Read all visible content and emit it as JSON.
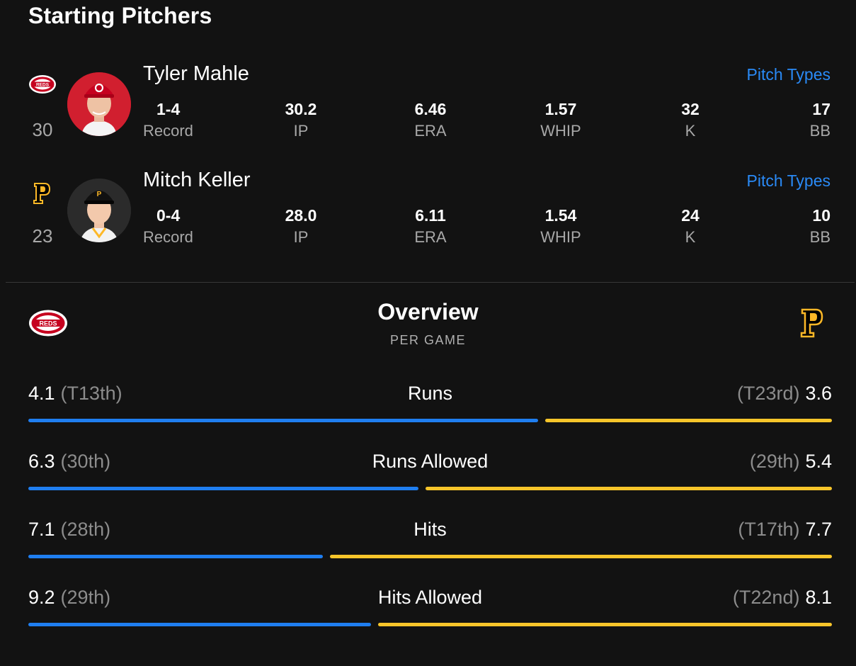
{
  "section_title": "Starting Pitchers",
  "pitchers": [
    {
      "team": "reds",
      "jersey": "30",
      "name": "Tyler Mahle",
      "link": "Pitch Types",
      "stats": [
        {
          "value": "1-4",
          "label": "Record"
        },
        {
          "value": "30.2",
          "label": "IP"
        },
        {
          "value": "6.46",
          "label": "ERA"
        },
        {
          "value": "1.57",
          "label": "WHIP"
        },
        {
          "value": "32",
          "label": "K"
        },
        {
          "value": "17",
          "label": "BB"
        }
      ]
    },
    {
      "team": "pirates",
      "jersey": "23",
      "name": "Mitch Keller",
      "link": "Pitch Types",
      "stats": [
        {
          "value": "0-4",
          "label": "Record"
        },
        {
          "value": "28.0",
          "label": "IP"
        },
        {
          "value": "6.11",
          "label": "ERA"
        },
        {
          "value": "1.54",
          "label": "WHIP"
        },
        {
          "value": "24",
          "label": "K"
        },
        {
          "value": "10",
          "label": "BB"
        }
      ]
    }
  ],
  "overview": {
    "title": "Overview",
    "subtitle": "PER GAME",
    "left_logo_text": "REDS",
    "right_logo_text": "P",
    "rows": [
      {
        "category": "Runs",
        "left_value": "4.1",
        "left_rank": "(T13th)",
        "right_value": "3.6",
        "right_rank": "(T23rd)",
        "left_share": 0.64,
        "right_share": 0.36
      },
      {
        "category": "Runs Allowed",
        "left_value": "6.3",
        "left_rank": "(30th)",
        "right_value": "5.4",
        "right_rank": "(29th)",
        "left_share": 0.49,
        "right_share": 0.51
      },
      {
        "category": "Hits",
        "left_value": "7.1",
        "left_rank": "(28th)",
        "right_value": "7.7",
        "right_rank": "(T17th)",
        "left_share": 0.37,
        "right_share": 0.63
      },
      {
        "category": "Hits Allowed",
        "left_value": "9.2",
        "left_rank": "(29th)",
        "right_value": "8.1",
        "right_rank": "(T22nd)",
        "left_share": 0.43,
        "right_share": 0.57
      }
    ]
  },
  "colors": {
    "background": "#121212",
    "link": "#2a8af6",
    "reds_bar": "#1f7ef0",
    "pirates_bar": "#f7c52a",
    "reds_red": "#c6011f",
    "pirates_gold": "#fdb827"
  }
}
